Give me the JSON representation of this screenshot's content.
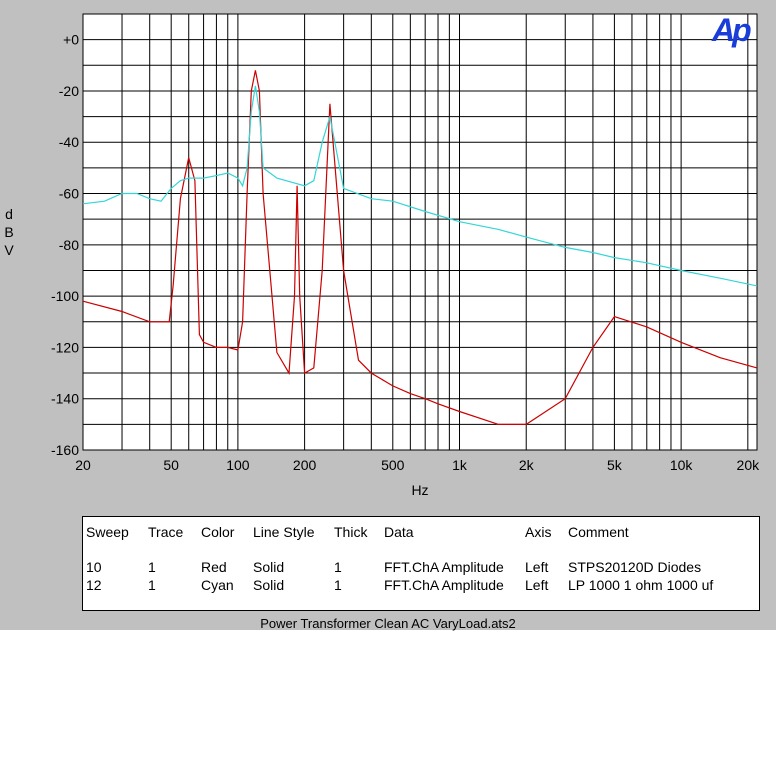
{
  "chart_data": {
    "type": "line",
    "ylabel": "dBV",
    "xlabel": "Hz",
    "x_scale": "log",
    "xlim": [
      20,
      22000
    ],
    "ylim": [
      -160,
      10
    ],
    "x_ticks": [
      "20",
      "50",
      "100",
      "200",
      "500",
      "1k",
      "2k",
      "5k",
      "10k",
      "20k"
    ],
    "y_ticks": [
      "+0",
      "-20",
      "-40",
      "-60",
      "-80",
      "-100",
      "-120",
      "-140",
      "-160"
    ],
    "grid": true,
    "series": [
      {
        "name": "STPS20120D Diodes",
        "color": "#cc0000",
        "x": [
          20,
          30,
          40,
          49,
          51,
          55,
          60,
          64,
          67,
          70,
          80,
          90,
          100,
          105,
          110,
          115,
          120,
          125,
          130,
          150,
          170,
          180,
          185,
          190,
          200,
          220,
          240,
          260,
          300,
          350,
          400,
          500,
          600,
          700,
          800,
          1000,
          1500,
          2000,
          3000,
          4000,
          5000,
          7000,
          10000,
          15000,
          22000
        ],
        "y": [
          -102,
          -106,
          -110,
          -110,
          -96,
          -62,
          -46,
          -55,
          -115,
          -118,
          -120,
          -120,
          -121,
          -110,
          -60,
          -20,
          -12,
          -20,
          -60,
          -122,
          -130,
          -100,
          -57,
          -100,
          -130,
          -128,
          -90,
          -25,
          -90,
          -125,
          -130,
          -135,
          -138,
          -140,
          -142,
          -145,
          -150,
          -150,
          -140,
          -120,
          -108,
          -112,
          -118,
          -124,
          -128
        ]
      },
      {
        "name": "LP 1000 1 ohm 1000 uf",
        "color": "#33d6d6",
        "x": [
          20,
          25,
          30,
          35,
          40,
          45,
          50,
          55,
          60,
          70,
          80,
          90,
          100,
          105,
          110,
          115,
          120,
          125,
          130,
          150,
          200,
          220,
          240,
          260,
          300,
          400,
          500,
          700,
          1000,
          1500,
          2000,
          3000,
          4000,
          5000,
          7000,
          10000,
          15000,
          22000
        ],
        "y": [
          -64,
          -63,
          -60,
          -60,
          -62,
          -63,
          -58,
          -55,
          -54,
          -54,
          -53,
          -52,
          -54,
          -57,
          -50,
          -28,
          -18,
          -28,
          -50,
          -54,
          -57,
          -55,
          -40,
          -30,
          -58,
          -62,
          -63,
          -67,
          -71,
          -74,
          -77,
          -81,
          -83,
          -85,
          -87,
          -90,
          -93,
          -96
        ]
      }
    ]
  },
  "axis": {
    "ylabel_chars": [
      "d",
      "B",
      "V"
    ],
    "xlabel": "Hz"
  },
  "logo": "Ap",
  "legend": {
    "headers": [
      "Sweep",
      "Trace",
      "Color",
      "Line Style",
      "Thick",
      "Data",
      "Axis",
      "Comment"
    ],
    "rows": [
      [
        "10",
        "1",
        "Red",
        "Solid",
        "1",
        "FFT.ChA Amplitude",
        "Left",
        "STPS20120D Diodes"
      ],
      [
        "12",
        "1",
        "Cyan",
        "Solid",
        "1",
        "FFT.ChA Amplitude",
        "Left",
        "LP 1000 1 ohm 1000 uf"
      ]
    ]
  },
  "footer": "Power Transformer Clean AC VaryLoad.ats2"
}
